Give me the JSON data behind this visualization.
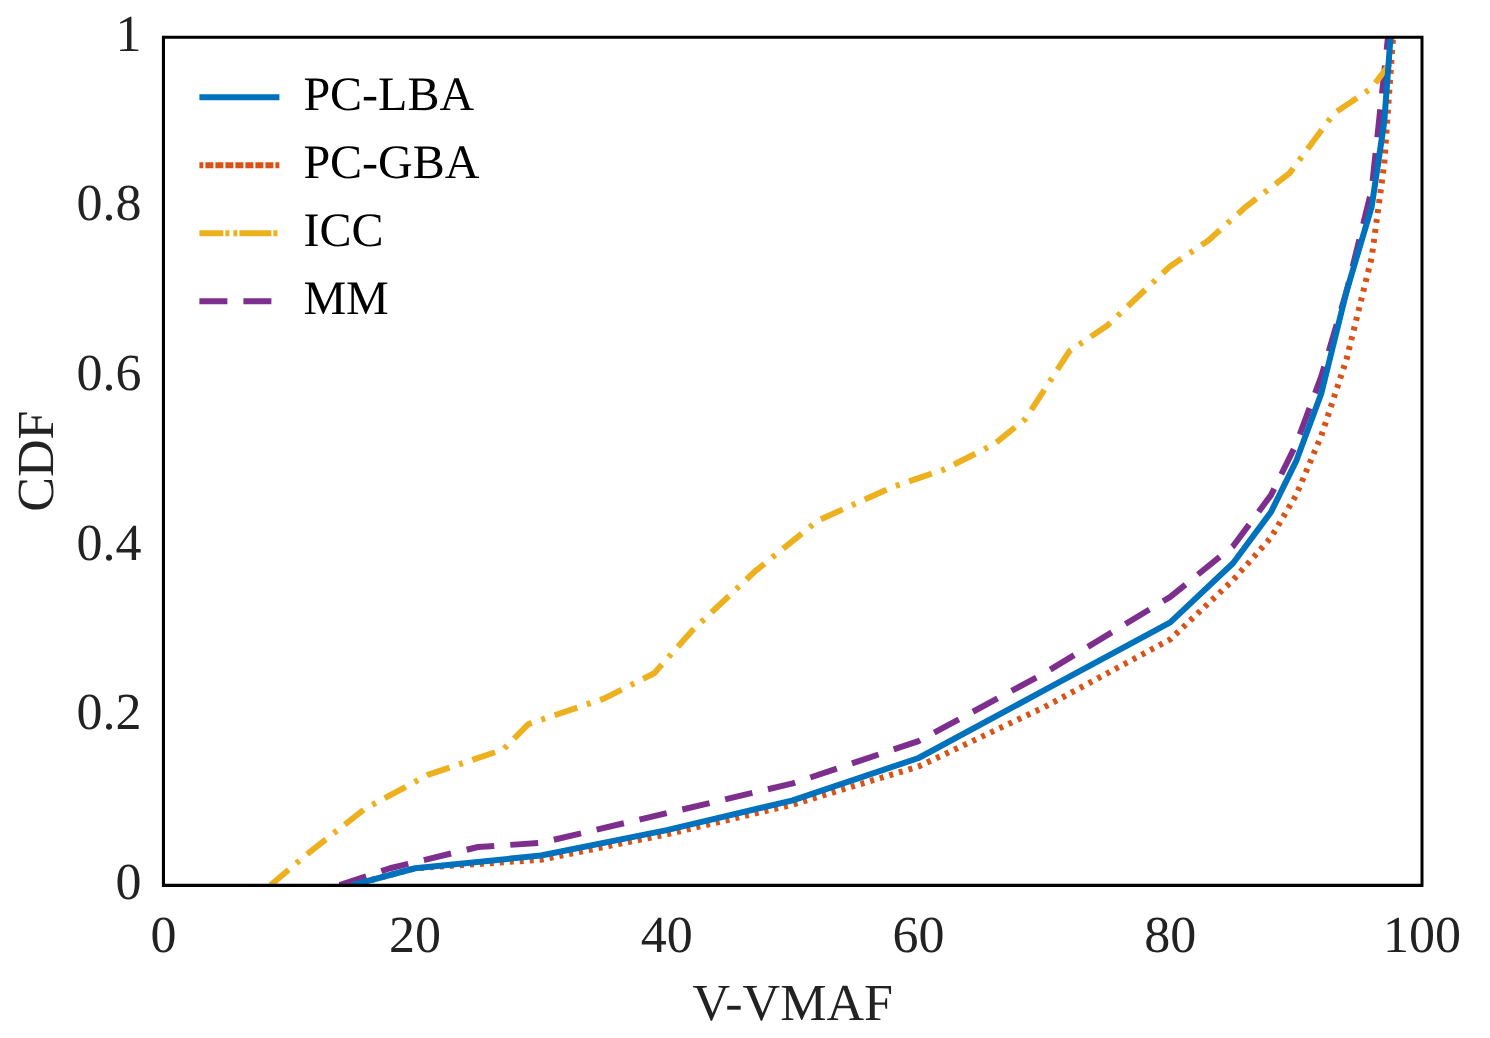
{
  "chart_data": {
    "type": "line",
    "xlabel": "V-VMAF",
    "ylabel": "CDF",
    "xlim": [
      0,
      100
    ],
    "ylim": [
      0,
      1
    ],
    "xticks": [
      0,
      20,
      40,
      60,
      80,
      100
    ],
    "yticks": [
      0,
      0.2,
      0.4,
      0.6,
      0.8,
      1
    ],
    "grid": false,
    "legend": "top left",
    "marker": "none",
    "series": [
      {
        "name": "PC-LBA",
        "color": "#0072bd",
        "line_style": "solid",
        "x": [
          15,
          20,
          30,
          40,
          50,
          60,
          70,
          80,
          85,
          88,
          90,
          92,
          94,
          96,
          97,
          97.5
        ],
        "values": [
          0,
          0.02,
          0.035,
          0.065,
          0.1,
          0.15,
          0.23,
          0.31,
          0.38,
          0.44,
          0.5,
          0.58,
          0.7,
          0.8,
          0.9,
          1
        ]
      },
      {
        "name": "PC-GBA",
        "color": "#d95319",
        "line_style": "dotted",
        "x": [
          15,
          20,
          30,
          40,
          50,
          60,
          70,
          80,
          85,
          88,
          90,
          92,
          94,
          96,
          97,
          97.7
        ],
        "values": [
          0,
          0.02,
          0.03,
          0.06,
          0.095,
          0.14,
          0.21,
          0.29,
          0.36,
          0.41,
          0.46,
          0.53,
          0.62,
          0.74,
          0.85,
          1
        ]
      },
      {
        "name": "ICC",
        "color": "#edb120",
        "line_style": "dashdot",
        "x": [
          8.5,
          11.7,
          16,
          21,
          27,
          29,
          35,
          39,
          42,
          47,
          52,
          55,
          58,
          62,
          66,
          68.5,
          72,
          75,
          80,
          83,
          86,
          89.5,
          93,
          96,
          97.5,
          97.6
        ],
        "values": [
          0,
          0.04,
          0.09,
          0.13,
          0.16,
          0.19,
          0.22,
          0.25,
          0.3,
          0.37,
          0.43,
          0.45,
          0.47,
          0.49,
          0.52,
          0.55,
          0.63,
          0.66,
          0.73,
          0.76,
          0.8,
          0.84,
          0.91,
          0.94,
          0.97,
          1
        ]
      },
      {
        "name": "MM",
        "color": "#7e2f8e",
        "line_style": "dashed",
        "x": [
          14,
          18,
          25,
          30,
          40,
          50,
          60,
          70,
          80,
          85,
          88,
          90,
          92,
          94,
          96,
          97.3
        ],
        "values": [
          0,
          0.02,
          0.045,
          0.05,
          0.085,
          0.12,
          0.17,
          0.25,
          0.34,
          0.4,
          0.46,
          0.52,
          0.6,
          0.7,
          0.82,
          1
        ]
      }
    ]
  }
}
